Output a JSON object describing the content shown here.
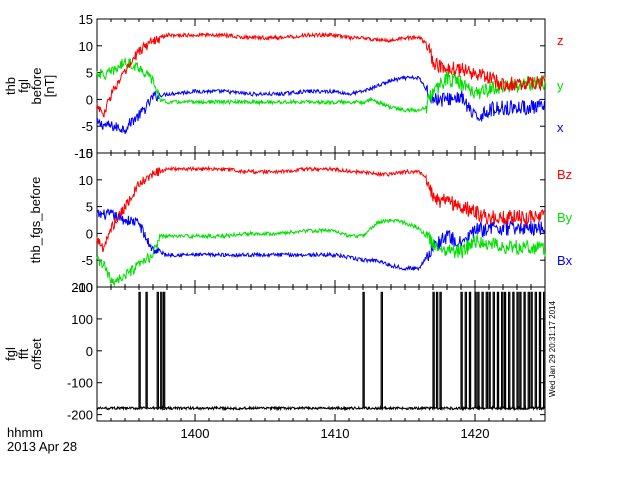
{
  "chart_data": [
    {
      "type": "line",
      "panel": "fgl",
      "ylabel_lines": [
        "thb",
        "fgl",
        "before",
        "[nT]"
      ],
      "ylim": [
        -10,
        15
      ],
      "yticks": [
        -10,
        -5,
        0,
        5,
        10,
        15
      ],
      "xlim": [
        1393.0,
        1425.0
      ],
      "series": [
        {
          "name": "x",
          "label": "x",
          "color": "#0000ff",
          "x": [
            1393.0,
            1394.0,
            1395.0,
            1395.5,
            1396.0,
            1396.5,
            1397.0,
            1398.0,
            1400.0,
            1402.0,
            1404.0,
            1406.0,
            1408.0,
            1410.0,
            1411.0,
            1412.0,
            1412.5,
            1413.0,
            1414.0,
            1415.0,
            1416.0,
            1416.5,
            1417.0,
            1418.0,
            1419.0,
            1419.5,
            1420.0,
            1421.0,
            1422.0,
            1423.0,
            1424.0,
            1425.0
          ],
          "y": [
            -4.5,
            -5.0,
            -5.5,
            -4.0,
            -3.0,
            -1.5,
            0.5,
            1.0,
            1.5,
            1.5,
            1.0,
            1.0,
            1.5,
            1.5,
            1.0,
            1.5,
            2.0,
            2.5,
            3.5,
            4.0,
            4.0,
            2.0,
            0.0,
            0.0,
            0.5,
            -1.5,
            -3.5,
            -2.0,
            -1.5,
            -1.5,
            -1.5,
            -1.5
          ]
        },
        {
          "name": "y",
          "label": "y",
          "color": "#00e000",
          "x": [
            1393.0,
            1393.5,
            1394.0,
            1395.0,
            1396.0,
            1397.0,
            1397.5,
            1398.0,
            1400.0,
            1402.0,
            1404.0,
            1406.0,
            1408.0,
            1410.0,
            1411.0,
            1412.0,
            1412.5,
            1413.0,
            1414.0,
            1415.0,
            1416.0,
            1416.5,
            1417.0,
            1418.0,
            1419.0,
            1420.0,
            1421.0,
            1422.0,
            1423.0,
            1424.0,
            1425.0
          ],
          "y": [
            5.0,
            4.5,
            5.0,
            7.0,
            6.0,
            3.5,
            0.0,
            -0.5,
            -0.5,
            -0.5,
            -0.5,
            -0.5,
            -0.5,
            -0.5,
            -0.5,
            -0.5,
            0.0,
            -0.5,
            -1.5,
            -2.0,
            -2.0,
            -1.5,
            1.5,
            4.0,
            3.0,
            1.0,
            2.0,
            2.5,
            2.5,
            3.0,
            3.0
          ]
        },
        {
          "name": "z",
          "label": "z",
          "color": "#ff0000",
          "x": [
            1393.0,
            1393.5,
            1394.0,
            1395.0,
            1396.0,
            1397.0,
            1398.0,
            1400.0,
            1402.0,
            1404.0,
            1406.0,
            1408.0,
            1410.0,
            1411.0,
            1412.0,
            1413.0,
            1414.0,
            1415.0,
            1416.0,
            1416.5,
            1417.0,
            1417.5,
            1418.0,
            1419.0,
            1420.0,
            1421.0,
            1422.0,
            1423.0,
            1424.0,
            1425.0
          ],
          "y": [
            -1.0,
            -3.0,
            1.0,
            5.0,
            9.0,
            11.0,
            12.0,
            12.0,
            12.0,
            11.5,
            11.5,
            12.0,
            12.0,
            11.5,
            11.5,
            11.0,
            11.0,
            11.5,
            11.5,
            10.5,
            7.0,
            6.0,
            6.0,
            5.5,
            5.0,
            4.0,
            3.0,
            3.0,
            3.0,
            3.0
          ]
        }
      ]
    },
    {
      "type": "line",
      "panel": "fgs",
      "ylabel_lines": [
        "thb_fgs_before"
      ],
      "ylim": [
        -10,
        15
      ],
      "yticks": [
        -10,
        -5,
        0,
        5,
        10,
        15
      ],
      "xlim": [
        1393.0,
        1425.0
      ],
      "series": [
        {
          "name": "Bx",
          "label": "Bx",
          "color": "#0000ff",
          "x": [
            1393.0,
            1394.0,
            1395.0,
            1396.0,
            1396.5,
            1397.0,
            1398.0,
            1400.0,
            1402.0,
            1404.0,
            1406.0,
            1408.0,
            1410.0,
            1411.0,
            1412.0,
            1413.0,
            1414.0,
            1415.0,
            1416.0,
            1417.0,
            1418.0,
            1419.0,
            1420.0,
            1421.0,
            1422.0,
            1423.0,
            1424.0,
            1425.0
          ],
          "y": [
            3.5,
            3.5,
            2.5,
            2.0,
            -1.0,
            -3.0,
            -4.0,
            -4.0,
            -4.0,
            -4.0,
            -4.0,
            -4.0,
            -4.0,
            -4.5,
            -5.0,
            -5.0,
            -6.0,
            -6.5,
            -6.5,
            -2.5,
            -0.5,
            -2.0,
            0.5,
            1.0,
            1.0,
            1.0,
            1.0,
            1.0
          ]
        },
        {
          "name": "By",
          "label": "By",
          "color": "#00e000",
          "x": [
            1393.0,
            1393.5,
            1394.0,
            1395.0,
            1396.0,
            1397.0,
            1397.5,
            1398.0,
            1400.0,
            1402.0,
            1404.0,
            1406.0,
            1408.0,
            1410.0,
            1411.0,
            1412.0,
            1413.0,
            1414.0,
            1415.0,
            1416.0,
            1417.0,
            1418.0,
            1419.0,
            1420.0,
            1421.0,
            1422.0,
            1423.0,
            1424.0,
            1425.0
          ],
          "y": [
            -5.0,
            -6.0,
            -9.0,
            -8.0,
            -6.0,
            -4.0,
            -0.5,
            -0.5,
            -0.5,
            -0.5,
            0.0,
            0.0,
            0.5,
            0.5,
            -0.5,
            -0.5,
            2.0,
            2.5,
            2.0,
            1.0,
            -2.0,
            -3.0,
            -3.5,
            -1.5,
            -2.0,
            -2.5,
            -2.5,
            -2.5,
            -3.0
          ]
        },
        {
          "name": "Bz",
          "label": "Bz",
          "color": "#ff0000",
          "x": [
            1393.0,
            1393.5,
            1394.0,
            1395.0,
            1396.0,
            1397.0,
            1398.0,
            1400.0,
            1402.0,
            1404.0,
            1406.0,
            1408.0,
            1410.0,
            1411.0,
            1412.0,
            1413.0,
            1414.0,
            1415.0,
            1416.0,
            1416.5,
            1417.0,
            1417.5,
            1418.0,
            1419.0,
            1420.0,
            1421.0,
            1422.0,
            1423.0,
            1424.0,
            1425.0
          ],
          "y": [
            -1.0,
            -3.0,
            1.0,
            5.0,
            9.0,
            11.0,
            12.0,
            12.0,
            12.0,
            11.5,
            11.5,
            12.0,
            12.0,
            11.5,
            11.5,
            11.0,
            11.0,
            11.5,
            11.5,
            10.5,
            7.0,
            6.0,
            6.0,
            5.0,
            4.0,
            3.0,
            3.0,
            3.0,
            3.0,
            3.0
          ]
        }
      ]
    },
    {
      "type": "line",
      "panel": "offset",
      "ylabel_lines": [
        "fgl",
        "fft",
        "offset"
      ],
      "ylim": [
        -220,
        200
      ],
      "yticks": [
        -200,
        -100,
        0,
        100,
        200
      ],
      "xlim": [
        1393.0,
        1425.0
      ],
      "baseline": -180,
      "spike_top": 185,
      "spike_times": [
        1396.0,
        1396.5,
        1397.3,
        1397.55,
        1397.75,
        1412.0,
        1413.3,
        1417.0,
        1417.25,
        1417.5,
        1419.0,
        1419.3,
        1419.6,
        1420.0,
        1420.2,
        1420.5,
        1420.8,
        1421.0,
        1421.3,
        1421.6,
        1421.9,
        1422.1,
        1422.4,
        1422.7,
        1423.0,
        1423.2,
        1423.5,
        1423.8,
        1424.0,
        1424.3,
        1424.6,
        1424.9
      ],
      "series": [
        {
          "name": "fgl fft offset",
          "color": "#000000"
        }
      ]
    }
  ],
  "x_axis": {
    "ticks": [
      1400,
      1410,
      1420
    ],
    "unit_label": "hhmm",
    "date_label": "2013 Apr 28"
  },
  "stamp": "Wed Jan 29 20:31:17 2014"
}
